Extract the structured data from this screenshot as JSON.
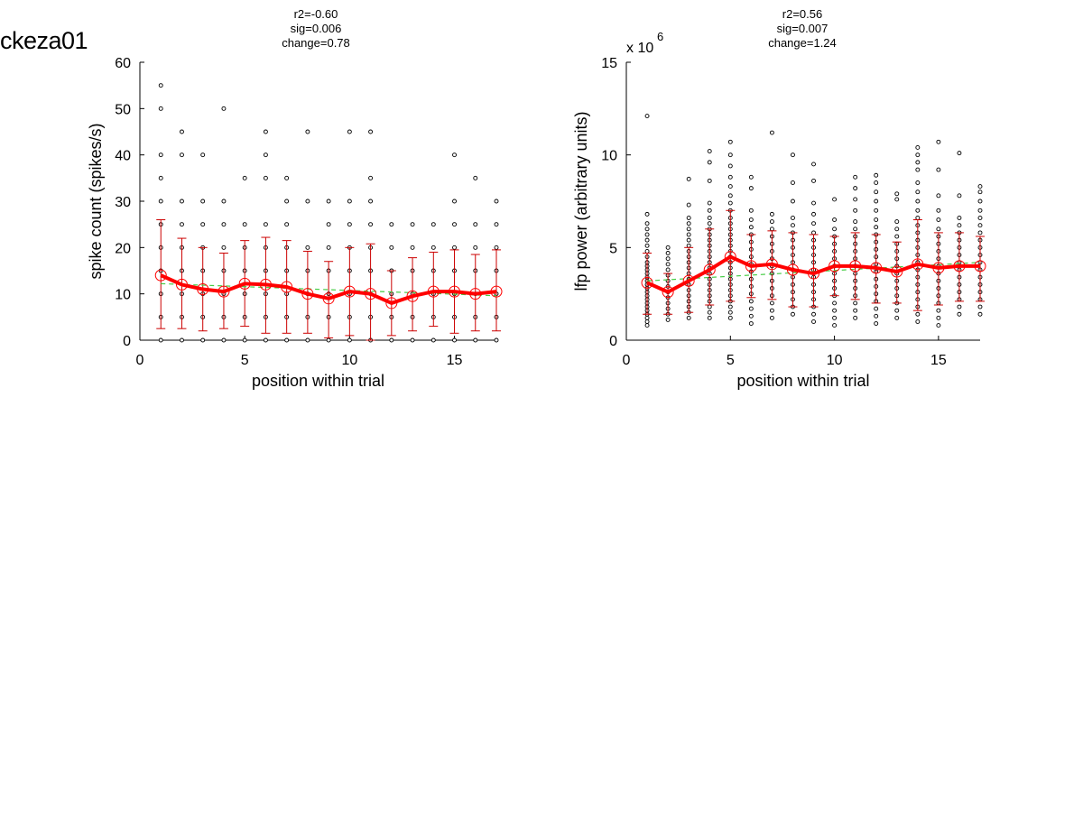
{
  "figure_title": "ckeza01",
  "chart_data": [
    {
      "type": "scatter",
      "stats": [
        "r2=-0.60",
        "sig=0.006",
        "change=0.78"
      ],
      "xlabel": "position within trial",
      "ylabel": "spike count (spikes/s)",
      "xlim": [
        0,
        17
      ],
      "ylim": [
        0,
        60
      ],
      "xticks": [
        0,
        5,
        10,
        15
      ],
      "yticks": [
        0,
        10,
        20,
        30,
        40,
        50,
        60
      ],
      "y_multiplier": "",
      "colors": {
        "mean": "#ff0000",
        "errorbar": "#cc0000",
        "fit": "#44cc44",
        "points": "#000000"
      },
      "positions": [
        1,
        2,
        3,
        4,
        5,
        6,
        7,
        8,
        9,
        10,
        11,
        12,
        13,
        14,
        15,
        16,
        17
      ],
      "mean": [
        14.0,
        12.0,
        11.0,
        10.5,
        12.2,
        12.0,
        11.5,
        10.0,
        9.0,
        10.5,
        10.0,
        8.0,
        9.5,
        10.5,
        10.5,
        10.0,
        10.5
      ],
      "err_low": [
        2.5,
        2.5,
        2.0,
        2.5,
        3.0,
        1.5,
        1.5,
        1.5,
        0.5,
        1.0,
        0.0,
        1.0,
        2.0,
        3.0,
        1.5,
        2.0,
        2.0
      ],
      "err_high": [
        26.0,
        22.0,
        20.0,
        18.8,
        21.5,
        22.2,
        21.5,
        19.2,
        17.0,
        20.0,
        20.8,
        15.0,
        17.8,
        19.0,
        19.5,
        18.5,
        19.5
      ],
      "fit": [
        [
          1,
          12.2
        ],
        [
          17,
          9.6
        ]
      ],
      "points": [
        [
          0,
          5,
          10,
          15,
          20,
          25,
          30,
          35,
          40,
          50,
          55
        ],
        [
          0,
          5,
          10,
          15,
          20,
          25,
          30,
          40,
          45
        ],
        [
          0,
          5,
          10,
          15,
          20,
          25,
          30,
          40
        ],
        [
          0,
          5,
          10,
          15,
          20,
          25,
          30,
          50
        ],
        [
          0,
          5,
          10,
          15,
          20,
          25,
          35
        ],
        [
          0,
          5,
          10,
          15,
          20,
          25,
          35,
          40,
          45
        ],
        [
          0,
          5,
          10,
          15,
          20,
          25,
          30,
          35
        ],
        [
          0,
          5,
          10,
          15,
          20,
          30,
          45
        ],
        [
          0,
          5,
          10,
          15,
          20,
          25,
          30
        ],
        [
          0,
          5,
          10,
          15,
          20,
          25,
          30,
          45
        ],
        [
          0,
          5,
          10,
          15,
          20,
          25,
          30,
          35,
          45
        ],
        [
          0,
          5,
          10,
          15,
          20,
          25
        ],
        [
          0,
          5,
          10,
          15,
          20,
          25
        ],
        [
          0,
          5,
          10,
          15,
          20,
          25
        ],
        [
          0,
          5,
          10,
          15,
          20,
          25,
          30,
          40
        ],
        [
          0,
          5,
          10,
          15,
          20,
          25,
          35
        ],
        [
          0,
          5,
          10,
          15,
          20,
          25,
          30
        ]
      ]
    },
    {
      "type": "scatter",
      "stats": [
        "r2=0.56",
        "sig=0.007",
        "change=1.24"
      ],
      "xlabel": "position within trial",
      "ylabel": "lfp power (arbitrary units)",
      "xlim": [
        0,
        17
      ],
      "ylim": [
        0,
        15
      ],
      "xticks": [
        0,
        5,
        10,
        15
      ],
      "yticks": [
        0,
        5,
        10,
        15
      ],
      "y_multiplier": "x 10",
      "y_exponent": "6",
      "colors": {
        "mean": "#ff0000",
        "errorbar": "#cc0000",
        "fit": "#44cc44",
        "points": "#000000"
      },
      "positions": [
        1,
        2,
        3,
        4,
        5,
        6,
        7,
        8,
        9,
        10,
        11,
        12,
        13,
        14,
        15,
        16,
        17
      ],
      "mean": [
        3.1,
        2.6,
        3.2,
        3.8,
        4.5,
        4.0,
        4.1,
        3.8,
        3.6,
        4.0,
        4.0,
        3.9,
        3.7,
        4.1,
        3.9,
        4.0,
        4.0
      ],
      "err_low": [
        1.4,
        1.4,
        1.5,
        1.9,
        2.1,
        2.3,
        2.2,
        1.8,
        1.8,
        2.4,
        2.2,
        2.0,
        2.0,
        1.6,
        1.9,
        2.1,
        2.1
      ],
      "err_high": [
        4.7,
        3.6,
        5.0,
        6.0,
        7.0,
        5.7,
        5.9,
        5.8,
        5.7,
        5.6,
        5.8,
        5.7,
        5.3,
        6.5,
        5.8,
        5.8,
        5.6
      ],
      "fit": [
        [
          1,
          3.2
        ],
        [
          17,
          4.2
        ]
      ],
      "points": [
        [
          0.8,
          1.0,
          1.2,
          1.4,
          1.6,
          1.8,
          2.0,
          2.2,
          2.4,
          2.6,
          2.8,
          3.0,
          3.2,
          3.4,
          3.6,
          3.8,
          4.0,
          4.2,
          4.5,
          4.8,
          5.1,
          5.4,
          5.7,
          6.0,
          6.3,
          6.8,
          12.1
        ],
        [
          1.1,
          1.4,
          1.7,
          2.0,
          2.3,
          2.6,
          2.9,
          3.2,
          3.5,
          3.8,
          4.1,
          4.4,
          4.7,
          5.0
        ],
        [
          1.2,
          1.5,
          1.8,
          2.1,
          2.4,
          2.7,
          3.0,
          3.3,
          3.6,
          3.9,
          4.2,
          4.5,
          4.8,
          5.1,
          5.4,
          5.7,
          6.0,
          6.3,
          6.6,
          7.3,
          8.7
        ],
        [
          1.2,
          1.5,
          1.8,
          2.1,
          2.4,
          2.7,
          3.0,
          3.3,
          3.6,
          3.9,
          4.2,
          4.5,
          4.8,
          5.1,
          5.4,
          5.7,
          6.0,
          6.3,
          6.6,
          7.0,
          7.4,
          8.6,
          9.6,
          10.2
        ],
        [
          1.2,
          1.5,
          1.8,
          2.1,
          2.4,
          2.7,
          3.0,
          3.3,
          3.6,
          3.9,
          4.2,
          4.5,
          4.8,
          5.1,
          5.4,
          5.7,
          6.0,
          6.3,
          6.6,
          7.0,
          7.4,
          7.8,
          8.3,
          8.8,
          9.4,
          10.0,
          10.7
        ],
        [
          0.9,
          1.3,
          1.7,
          2.1,
          2.5,
          2.9,
          3.3,
          3.7,
          4.1,
          4.5,
          4.9,
          5.3,
          5.7,
          6.1,
          6.5,
          7.0,
          8.2,
          8.8
        ],
        [
          1.2,
          1.6,
          2.0,
          2.4,
          2.8,
          3.2,
          3.6,
          4.0,
          4.4,
          4.8,
          5.2,
          5.6,
          6.0,
          6.4,
          6.8,
          11.2
        ],
        [
          1.4,
          1.8,
          2.2,
          2.6,
          3.0,
          3.4,
          3.8,
          4.2,
          4.6,
          5.0,
          5.4,
          5.8,
          6.2,
          6.6,
          7.5,
          8.5,
          10.0
        ],
        [
          1.0,
          1.4,
          1.8,
          2.2,
          2.6,
          3.0,
          3.4,
          3.8,
          4.2,
          4.6,
          5.0,
          5.4,
          5.8,
          6.3,
          6.8,
          7.4,
          8.6,
          9.5
        ],
        [
          0.8,
          1.2,
          1.6,
          2.0,
          2.4,
          2.8,
          3.2,
          3.6,
          4.0,
          4.4,
          4.8,
          5.2,
          5.6,
          6.0,
          6.5,
          7.6
        ],
        [
          1.2,
          1.6,
          2.0,
          2.4,
          2.8,
          3.2,
          3.6,
          4.0,
          4.4,
          4.8,
          5.2,
          5.6,
          6.0,
          6.4,
          7.0,
          7.6,
          8.2,
          8.8
        ],
        [
          0.9,
          1.3,
          1.7,
          2.1,
          2.5,
          2.9,
          3.3,
          3.7,
          4.1,
          4.5,
          4.9,
          5.3,
          5.7,
          6.1,
          6.5,
          7.0,
          7.5,
          8.0,
          8.5,
          8.9
        ],
        [
          1.2,
          1.6,
          2.0,
          2.4,
          2.8,
          3.2,
          3.6,
          4.0,
          4.4,
          4.8,
          5.2,
          5.6,
          6.0,
          6.4,
          7.6,
          7.9
        ],
        [
          1.0,
          1.4,
          1.8,
          2.2,
          2.6,
          3.0,
          3.4,
          3.8,
          4.2,
          4.6,
          5.0,
          5.4,
          5.8,
          6.2,
          6.6,
          7.0,
          7.5,
          8.0,
          8.5,
          9.2,
          9.6,
          10.0,
          10.4
        ],
        [
          0.8,
          1.2,
          1.6,
          2.0,
          2.4,
          2.8,
          3.2,
          3.6,
          4.0,
          4.4,
          4.8,
          5.2,
          5.6,
          6.0,
          6.5,
          7.0,
          7.8,
          9.2,
          10.7
        ],
        [
          1.4,
          1.8,
          2.2,
          2.6,
          3.0,
          3.4,
          3.8,
          4.2,
          4.6,
          5.0,
          5.4,
          5.8,
          6.2,
          6.6,
          7.8,
          10.1
        ],
        [
          1.4,
          1.8,
          2.2,
          2.6,
          3.0,
          3.4,
          3.8,
          4.2,
          4.6,
          5.0,
          5.4,
          5.8,
          6.2,
          6.6,
          7.0,
          7.5,
          8.0,
          8.3
        ]
      ]
    }
  ]
}
